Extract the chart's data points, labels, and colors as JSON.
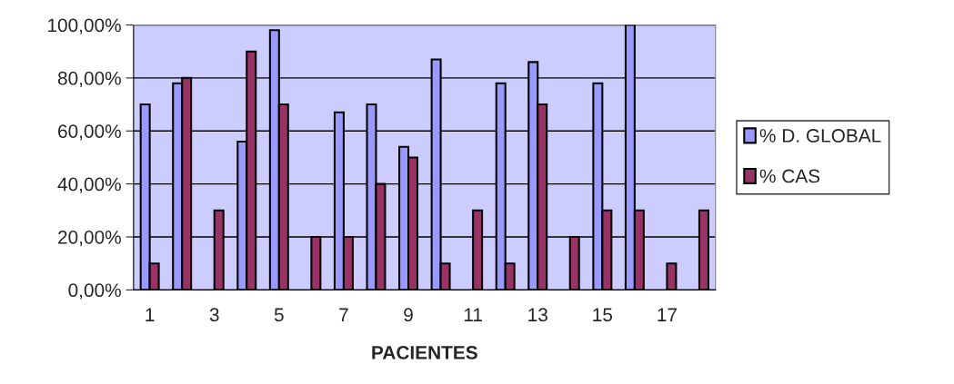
{
  "chart_data": {
    "type": "bar",
    "xlabel": "PACIENTES",
    "categories": [
      "1",
      null,
      "3",
      null,
      "5",
      null,
      "7",
      null,
      "9",
      null,
      "11",
      null,
      "13",
      null,
      "15",
      null,
      "17",
      null
    ],
    "series": [
      {
        "name": "% D. GLOBAL",
        "color": "#9999ff",
        "values": [
          70,
          78,
          null,
          56,
          98,
          null,
          67,
          70,
          54,
          87,
          null,
          78,
          86,
          null,
          78,
          100,
          null,
          null
        ]
      },
      {
        "name": "% CAS",
        "color": "#993366",
        "values": [
          10,
          80,
          30,
          90,
          70,
          20,
          20,
          40,
          50,
          10,
          30,
          10,
          70,
          20,
          30,
          30,
          10,
          30
        ]
      }
    ],
    "ylim": [
      0,
      100
    ],
    "yticks": [
      {
        "value": 0,
        "label": "0,00%"
      },
      {
        "value": 20,
        "label": "20,00%"
      },
      {
        "value": 40,
        "label": "40,00%"
      },
      {
        "value": 60,
        "label": "60,00%"
      },
      {
        "value": 80,
        "label": "80,00%"
      },
      {
        "value": 100,
        "label": "100,00%"
      }
    ],
    "grid": "y",
    "legend": "right"
  }
}
